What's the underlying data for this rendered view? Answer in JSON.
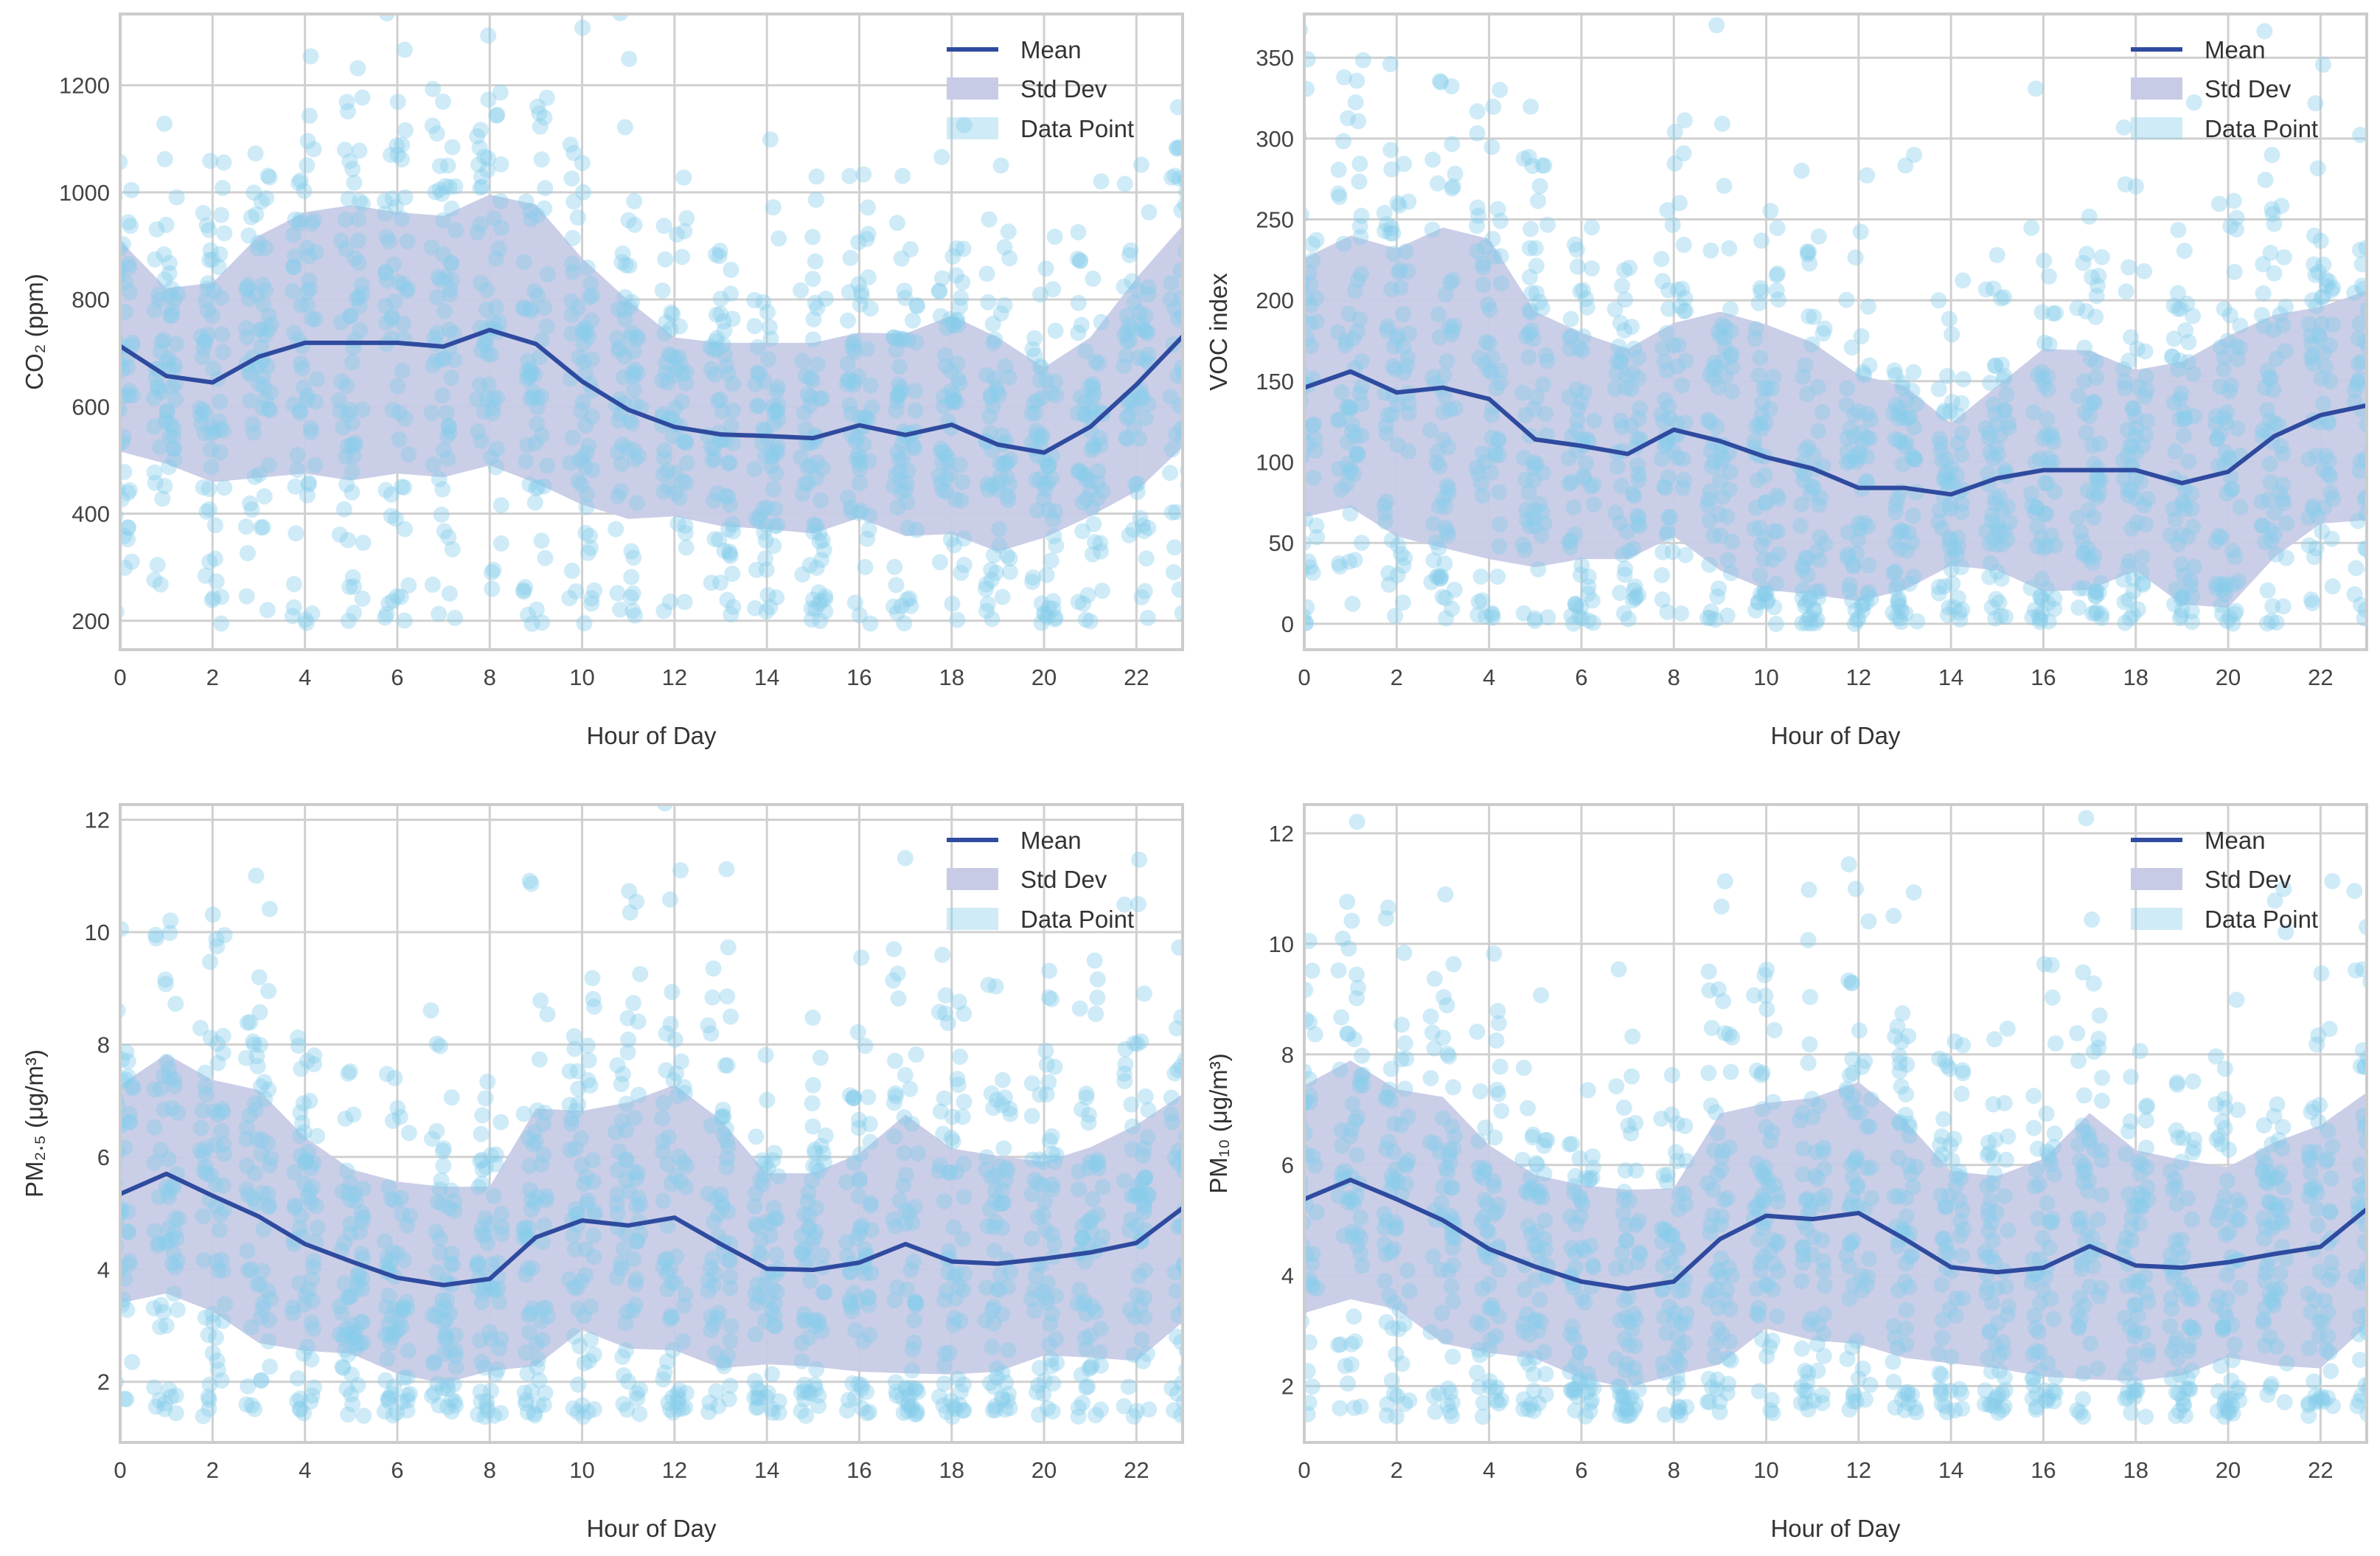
{
  "colors": {
    "mean": "#2f4b9f",
    "std": "#c8cbe6",
    "points": "#87ceeb",
    "grid": "#d0d0d0"
  },
  "legend": {
    "mean": "Mean",
    "std": "Std Dev",
    "points": "Data Point"
  },
  "chart_data": [
    {
      "type": "line",
      "title": "",
      "xlabel": "Hour of Day",
      "ylabel": "CO₂ (ppm)",
      "x": [
        0,
        1,
        2,
        3,
        4,
        5,
        6,
        7,
        8,
        9,
        10,
        11,
        12,
        13,
        14,
        15,
        16,
        17,
        18,
        19,
        20,
        21,
        22,
        23
      ],
      "xlim": [
        0,
        23
      ],
      "ylim": [
        146,
        1333
      ],
      "xticks": [
        "0",
        "2",
        "4",
        "6",
        "8",
        "10",
        "12",
        "14",
        "16",
        "18",
        "20",
        "22"
      ],
      "yticks": [
        "200",
        "400",
        "600",
        "800",
        "1000",
        "1200"
      ],
      "grid": true,
      "legend_position": "top-right",
      "series": [
        {
          "name": "Mean",
          "values": [
            713,
            657,
            645,
            693,
            719,
            719,
            719,
            712,
            743,
            717,
            647,
            594,
            562,
            548,
            545,
            541,
            565,
            547,
            566,
            529,
            514,
            562,
            641,
            731
          ]
        },
        {
          "name": "Std Dev",
          "values": [
            197,
            164,
            186,
            226,
            244,
            257,
            244,
            244,
            253,
            260,
            230,
            204,
            167,
            171,
            174,
            178,
            173,
            189,
            204,
            200,
            159,
            167,
            199,
            207
          ]
        }
      ],
      "points_per_hour": 60
    },
    {
      "type": "line",
      "title": "",
      "xlabel": "Hour of Day",
      "ylabel": "VOC index",
      "x": [
        0,
        1,
        2,
        3,
        4,
        5,
        6,
        7,
        8,
        9,
        10,
        11,
        12,
        13,
        14,
        15,
        16,
        17,
        18,
        19,
        20,
        21,
        22,
        23
      ],
      "xlim": [
        0,
        23
      ],
      "ylim": [
        -16,
        377
      ],
      "xticks": [
        "0",
        "2",
        "4",
        "6",
        "8",
        "10",
        "12",
        "14",
        "16",
        "18",
        "20",
        "22"
      ],
      "yticks": [
        "0",
        "50",
        "100",
        "150",
        "200",
        "250",
        "300",
        "350"
      ],
      "grid": true,
      "legend_position": "top-right",
      "series": [
        {
          "name": "Mean",
          "values": [
            146,
            156,
            143,
            146,
            139,
            114,
            110,
            105,
            120,
            113,
            103,
            96,
            84,
            84,
            80,
            90,
            95,
            95,
            95,
            87,
            94,
            116,
            129,
            135
          ]
        },
        {
          "name": "Std Dev",
          "values": [
            80,
            84,
            89,
            99,
            99,
            79,
            70,
            65,
            66,
            80,
            82,
            78,
            70,
            63,
            44,
            57,
            75,
            74,
            62,
            75,
            84,
            75,
            67,
            71
          ]
        }
      ],
      "points_per_hour": 60
    },
    {
      "type": "line",
      "title": "",
      "xlabel": "Hour of Day",
      "ylabel": "PM₂.₅ (μg/m³)",
      "x": [
        0,
        1,
        2,
        3,
        4,
        5,
        6,
        7,
        8,
        9,
        10,
        11,
        12,
        13,
        14,
        15,
        16,
        17,
        18,
        19,
        20,
        21,
        22,
        23
      ],
      "xlim": [
        0,
        23
      ],
      "ylim": [
        0.92,
        12.27
      ],
      "xticks": [
        "0",
        "2",
        "4",
        "6",
        "8",
        "10",
        "12",
        "14",
        "16",
        "18",
        "20",
        "22"
      ],
      "yticks": [
        "2",
        "4",
        "6",
        "8",
        "10",
        "12"
      ],
      "grid": true,
      "legend_position": "top-right",
      "series": [
        {
          "name": "Mean",
          "values": [
            5.34,
            5.7,
            5.31,
            4.94,
            4.45,
            4.14,
            3.85,
            3.72,
            3.83,
            4.57,
            4.87,
            4.78,
            4.92,
            4.45,
            4.01,
            3.99,
            4.12,
            4.45,
            4.14,
            4.1,
            4.19,
            4.3,
            4.47,
            5.09
          ]
        },
        {
          "name": "Std Dev",
          "values": [
            1.94,
            2.13,
            2.06,
            2.25,
            1.9,
            1.64,
            1.71,
            1.75,
            1.64,
            2.29,
            1.95,
            2.19,
            2.36,
            2.21,
            1.7,
            1.72,
            1.94,
            2.3,
            2.01,
            1.92,
            1.72,
            1.87,
            2.1,
            2.03
          ]
        }
      ],
      "points_per_hour": 60
    },
    {
      "type": "line",
      "title": "",
      "xlabel": "Hour of Day",
      "ylabel": "PM₁₀ (μg/m³)",
      "x": [
        0,
        1,
        2,
        3,
        4,
        5,
        6,
        7,
        8,
        9,
        10,
        11,
        12,
        13,
        14,
        15,
        16,
        17,
        18,
        19,
        20,
        21,
        22,
        23
      ],
      "xlim": [
        0,
        23
      ],
      "ylim": [
        0.98,
        12.52
      ],
      "xticks": [
        "0",
        "2",
        "4",
        "6",
        "8",
        "10",
        "12",
        "14",
        "16",
        "18",
        "20",
        "22"
      ],
      "yticks": [
        "2",
        "4",
        "6",
        "8",
        "10",
        "12"
      ],
      "grid": true,
      "legend_position": "top-right",
      "series": [
        {
          "name": "Mean",
          "values": [
            5.38,
            5.73,
            5.38,
            5.0,
            4.48,
            4.16,
            3.89,
            3.76,
            3.89,
            4.66,
            5.08,
            5.02,
            5.13,
            4.66,
            4.15,
            4.06,
            4.14,
            4.53,
            4.18,
            4.14,
            4.24,
            4.39,
            4.52,
            5.2
          ]
        },
        {
          "name": "Std Dev",
          "values": [
            2.06,
            2.16,
            1.99,
            2.23,
            1.88,
            1.66,
            1.75,
            1.79,
            1.69,
            2.27,
            2.04,
            2.19,
            2.37,
            2.15,
            1.74,
            1.74,
            1.97,
            2.41,
            2.09,
            1.95,
            1.72,
            2.02,
            2.2,
            2.11
          ]
        }
      ],
      "points_per_hour": 60
    }
  ]
}
